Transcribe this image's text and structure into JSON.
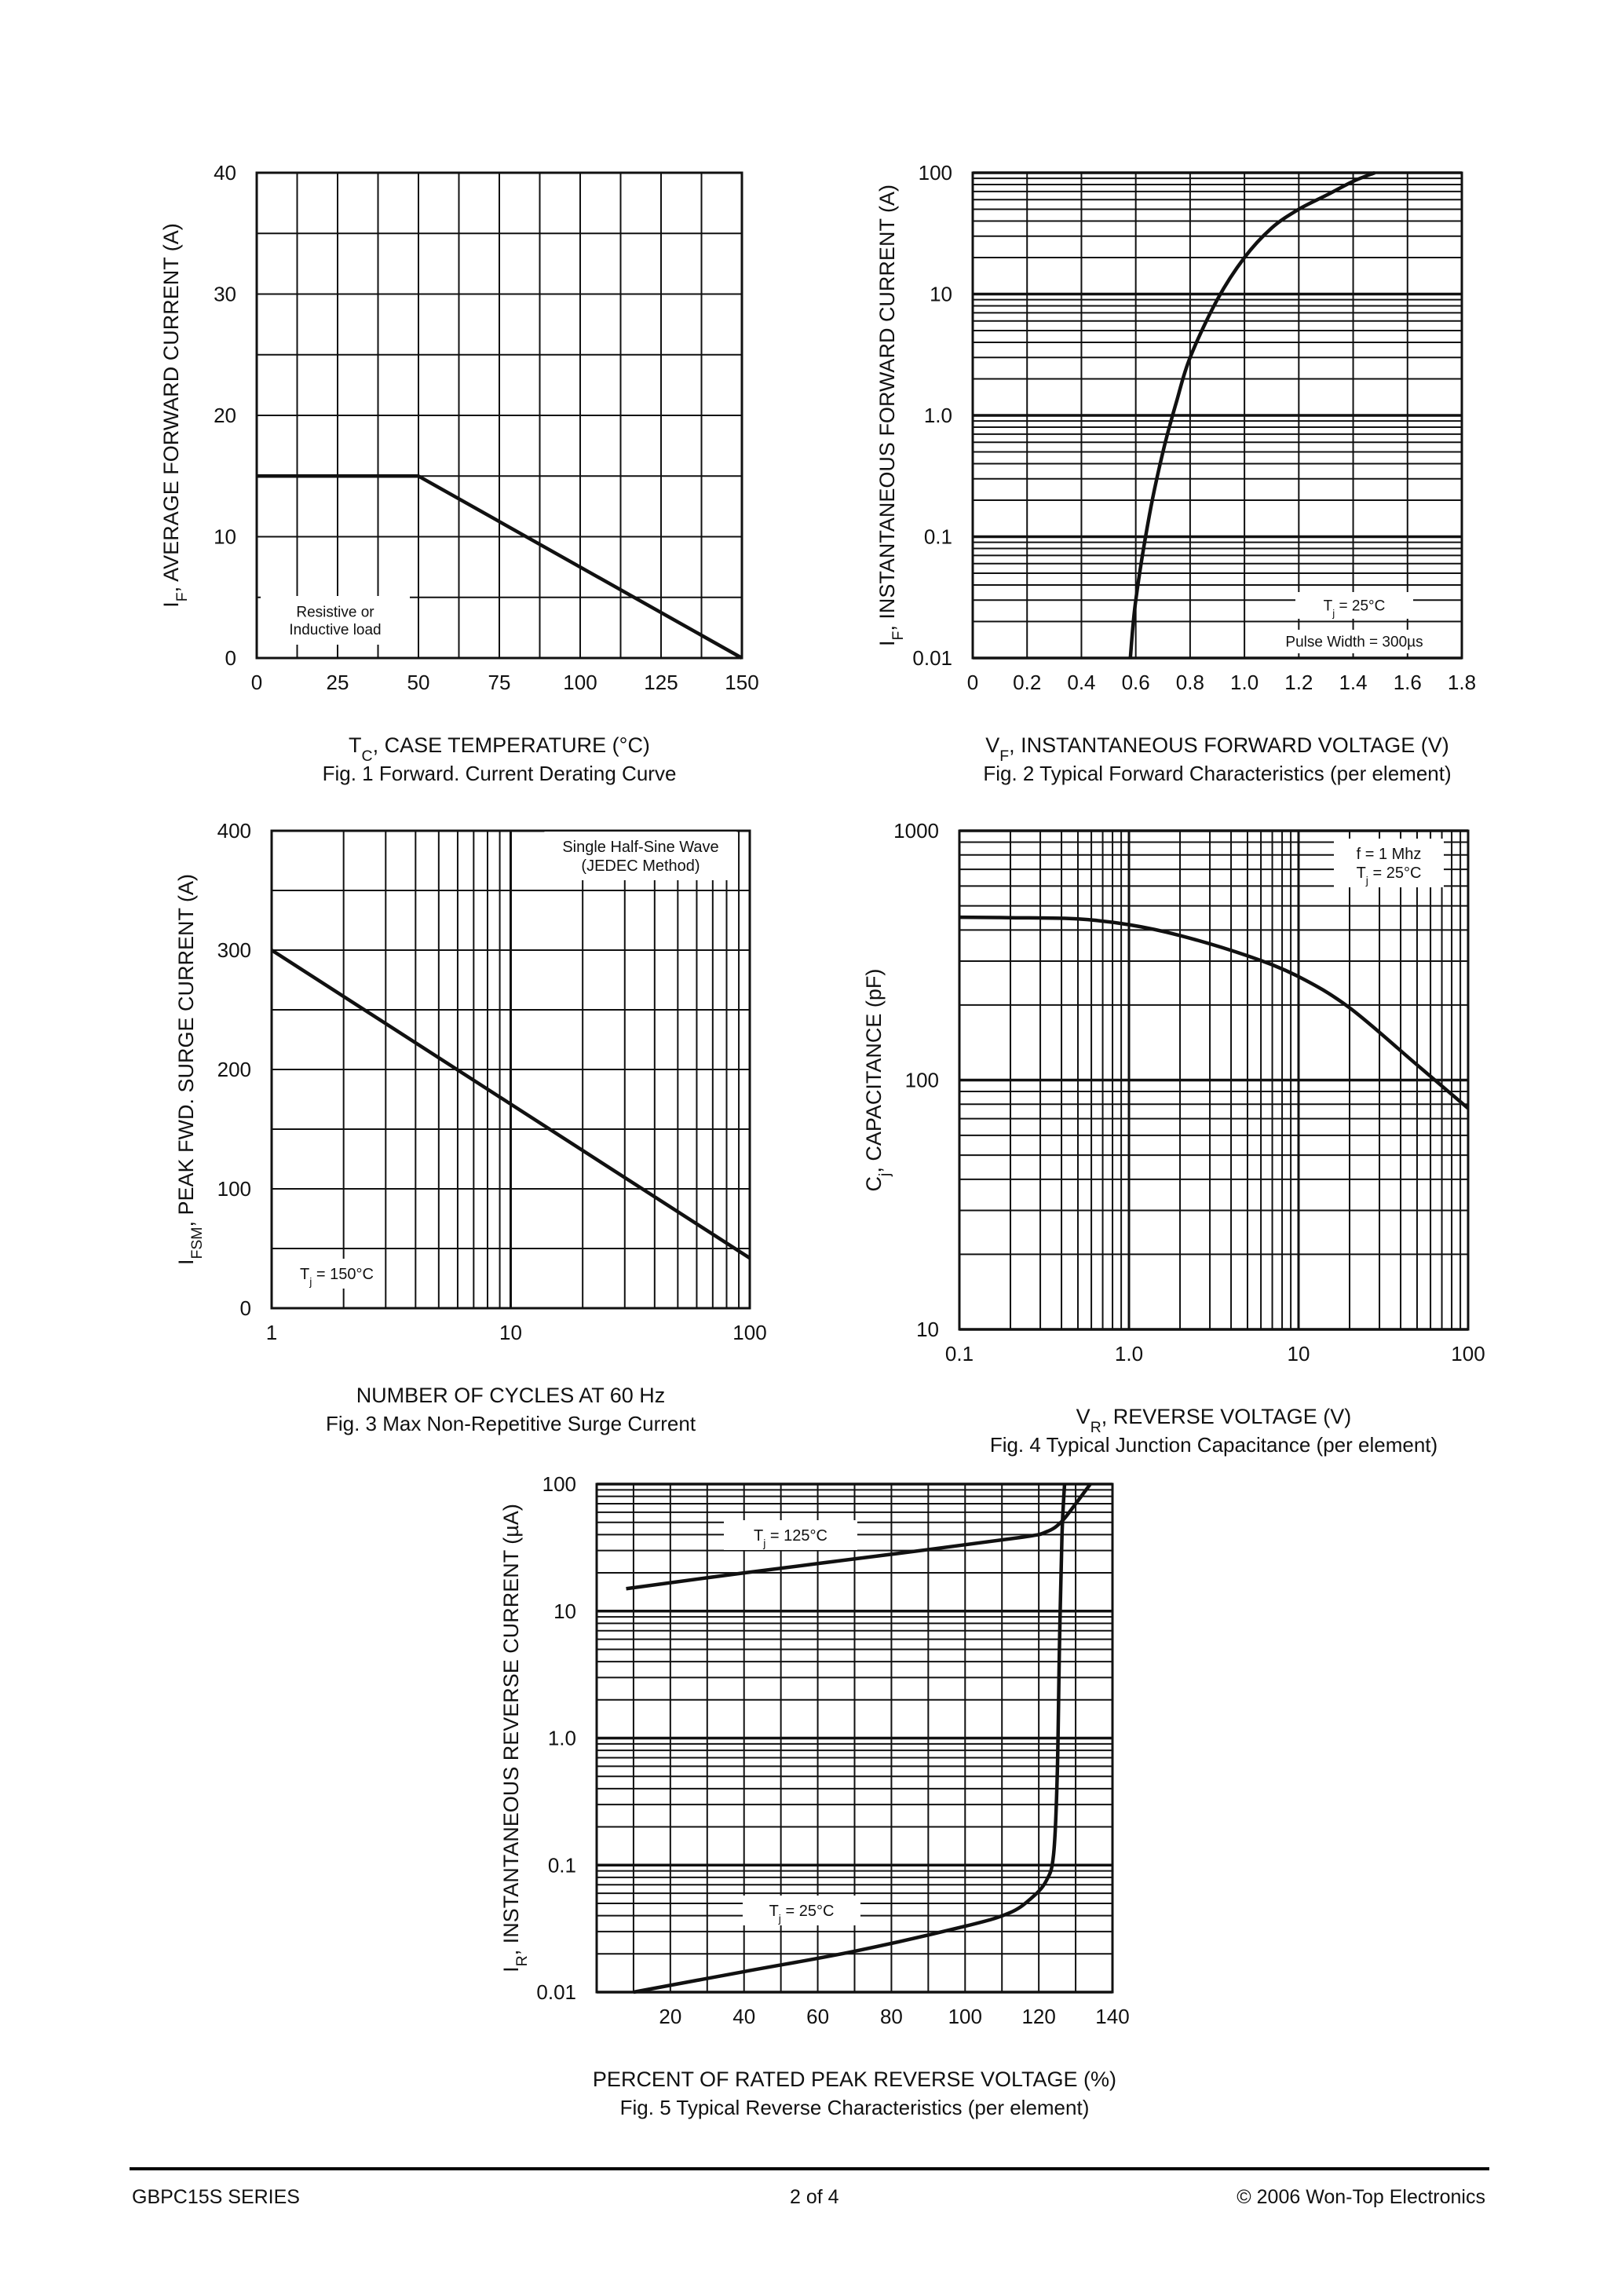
{
  "chart_data": [
    {
      "id": "fig1",
      "type": "line",
      "caption": "Fig. 1  Forward. Current Derating Curve",
      "xlabel": {
        "main": "T",
        "sub": "C",
        "rest": ", CASE TEMPERATURE (°C)"
      },
      "ylabel": {
        "main": "I",
        "sub": "F",
        "rest": ",  AVERAGE FORWARD CURRENT (A)"
      },
      "xlim": [
        0,
        150
      ],
      "ylim": [
        0,
        40
      ],
      "xticks": [
        0,
        25,
        50,
        75,
        100,
        125,
        150
      ],
      "xtick_labels": [
        "0",
        "25",
        "50",
        "75",
        "100",
        "125",
        "150"
      ],
      "yticks": [
        0,
        10,
        20,
        30,
        40
      ],
      "ytick_labels": [
        "0",
        "10",
        "20",
        "30",
        "40"
      ],
      "x_grid": [
        12.5,
        25,
        37.5,
        50,
        62.5,
        75,
        87.5,
        100,
        112.5,
        125,
        137.5
      ],
      "y_grid": [
        5,
        10,
        15,
        20,
        25,
        30,
        35
      ],
      "series": [
        {
          "x": [
            0,
            50,
            150
          ],
          "y": [
            15,
            15,
            0
          ]
        }
      ],
      "annotations": [
        "Resistive or",
        "Inductive load"
      ]
    },
    {
      "id": "fig2",
      "type": "line",
      "caption": "Fig. 2  Typical Forward Characteristics (per element)",
      "xlabel": {
        "main": "V",
        "sub": "F",
        "rest": ", INSTANTANEOUS FORWARD VOLTAGE (V)"
      },
      "ylabel": {
        "main": "I",
        "sub": "F",
        "rest": ", INSTANTANEOUS FORWARD CURRENT (A)"
      },
      "xlim": [
        0,
        1.8
      ],
      "ylim": [
        0.01,
        100
      ],
      "yscale": "log",
      "xticks": [
        0,
        0.2,
        0.4,
        0.6,
        0.8,
        1.0,
        1.2,
        1.4,
        1.6,
        1.8
      ],
      "xtick_labels": [
        "0",
        "0.2",
        "0.4",
        "0.6",
        "0.8",
        "1.0",
        "1.2",
        "1.4",
        "1.6",
        "1.8"
      ],
      "yticks": [
        0.01,
        0.1,
        1,
        10,
        100
      ],
      "ytick_labels": [
        "0.01",
        "0.1",
        "1.0",
        "10",
        "100"
      ],
      "series": [
        {
          "x": [
            0.58,
            0.6,
            0.65,
            0.7,
            0.75,
            0.8,
            0.9,
            1.0,
            1.1,
            1.2,
            1.3,
            1.4,
            1.48
          ],
          "y": [
            0.01,
            0.03,
            0.15,
            0.5,
            1.3,
            3,
            9,
            20,
            35,
            50,
            65,
            85,
            100
          ]
        }
      ],
      "annotations": [
        "T_j = 25°C",
        "Pulse Width = 300µs"
      ]
    },
    {
      "id": "fig3",
      "type": "line",
      "caption": "Fig. 3  Max Non-Repetitive Surge Current",
      "xlabel": {
        "main": "NUMBER OF CYCLES AT 60 Hz",
        "sub": "",
        "rest": ""
      },
      "ylabel": {
        "main": "I",
        "sub": "FSM",
        "rest": ", PEAK FWD. SURGE CURRENT (A)"
      },
      "xlim": [
        1,
        100
      ],
      "ylim": [
        0,
        400
      ],
      "xscale": "log",
      "xticks": [
        1,
        10,
        100
      ],
      "xtick_labels": [
        "1",
        "10",
        "100"
      ],
      "yticks": [
        0,
        100,
        200,
        300,
        400
      ],
      "ytick_labels": [
        "0",
        "100",
        "200",
        "300",
        "400"
      ],
      "y_grid": [
        50,
        100,
        150,
        200,
        250,
        300,
        350
      ],
      "series": [
        {
          "x": [
            1,
            100
          ],
          "y": [
            300,
            42
          ]
        }
      ],
      "annotations": [
        "Single Half-Sine Wave",
        "(JEDEC Method)",
        "T_j = 150°C"
      ]
    },
    {
      "id": "fig4",
      "type": "line",
      "caption": "Fig. 4  Typical Junction Capacitance (per element)",
      "xlabel": {
        "main": "V",
        "sub": "R",
        "rest": ", REVERSE VOLTAGE (V)"
      },
      "ylabel": {
        "main": "C",
        "sub": "j",
        "rest": ", CAPACITANCE (pF)"
      },
      "xlim": [
        0.1,
        100
      ],
      "ylim": [
        10,
        1000
      ],
      "xscale": "log",
      "yscale": "log",
      "xticks": [
        0.1,
        1,
        10,
        100
      ],
      "xtick_labels": [
        "0.1",
        "1.0",
        "10",
        "100"
      ],
      "yticks": [
        10,
        100,
        1000
      ],
      "ytick_labels": [
        "10",
        "100",
        "1000"
      ],
      "series": [
        {
          "x": [
            0.1,
            0.2,
            0.5,
            1,
            2,
            5,
            10,
            20,
            50,
            100
          ],
          "y": [
            450,
            448,
            443,
            420,
            380,
            315,
            260,
            195,
            115,
            77
          ]
        }
      ],
      "annotations": [
        "f = 1 Mhz",
        "T_j = 25°C"
      ]
    },
    {
      "id": "fig5",
      "type": "line",
      "caption": "Fig. 5  Typical Reverse Characteristics (per element)",
      "xlabel": {
        "main": "PERCENT OF RATED PEAK  REVERSE VOLTAGE (%)",
        "sub": "",
        "rest": ""
      },
      "ylabel": {
        "main": "I",
        "sub": "R",
        "rest": ", INSTANTANEOUS REVERSE CURRENT (µA)"
      },
      "xlim": [
        0,
        140
      ],
      "ylim": [
        0.01,
        100
      ],
      "yscale": "log",
      "xticks": [
        20,
        40,
        60,
        80,
        100,
        120,
        140
      ],
      "xtick_labels": [
        "20",
        "40",
        "60",
        "80",
        "100",
        "120",
        "140"
      ],
      "yticks": [
        0.01,
        0.1,
        1,
        10,
        100
      ],
      "ytick_labels": [
        "0.01",
        "0.1",
        "1.0",
        "10",
        "100"
      ],
      "x_grid": [
        10,
        20,
        30,
        40,
        50,
        60,
        70,
        80,
        90,
        100,
        110,
        120,
        130
      ],
      "series": [
        {
          "label": "T_j = 125°C",
          "x": [
            8,
            40,
            80,
            115,
            122,
            126,
            130,
            134
          ],
          "y": [
            15,
            20,
            28,
            38,
            42,
            50,
            70,
            100
          ]
        },
        {
          "label": "T_j = 25°C",
          "x": [
            10,
            40,
            70,
            100,
            112,
            118,
            122,
            124,
            125,
            125.6,
            126.3,
            127
          ],
          "y": [
            0.01,
            0.0145,
            0.021,
            0.033,
            0.042,
            0.055,
            0.075,
            0.12,
            0.5,
            5,
            40,
            100
          ]
        }
      ]
    }
  ],
  "footer": {
    "left": "GBPC15S SERIES",
    "center": "2 of 4",
    "right": "© 2006 Won-Top Electronics"
  }
}
